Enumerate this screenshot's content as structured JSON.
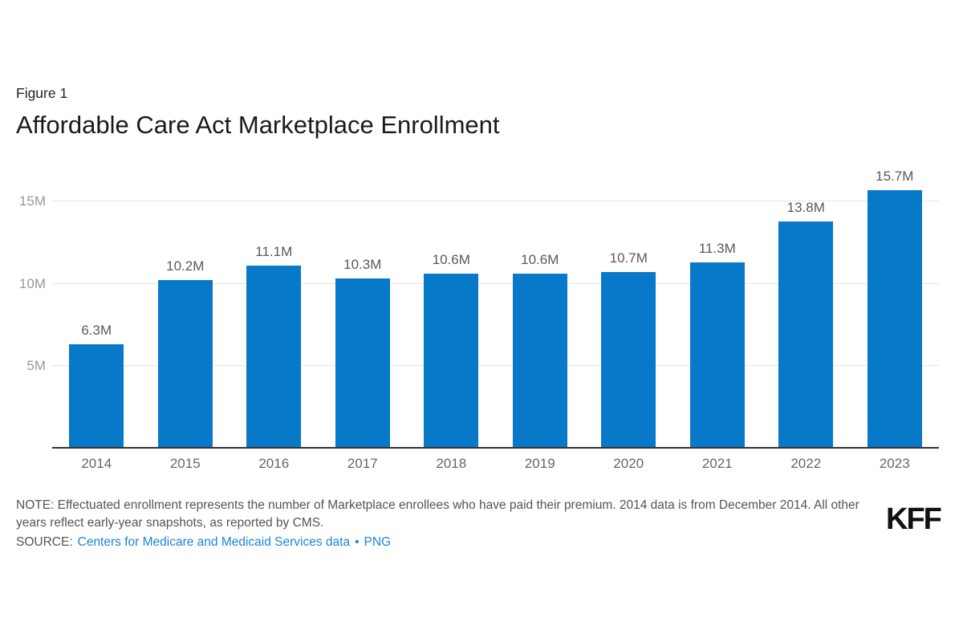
{
  "page": {
    "figure_label": "Figure 1",
    "title": "Affordable Care Act Marketplace Enrollment"
  },
  "chart_data": {
    "type": "bar",
    "title": "Affordable Care Act Marketplace Enrollment",
    "categories": [
      "2014",
      "2015",
      "2016",
      "2017",
      "2018",
      "2019",
      "2020",
      "2021",
      "2022",
      "2023"
    ],
    "values": [
      6.3,
      10.2,
      11.1,
      10.3,
      10.6,
      10.6,
      10.7,
      11.3,
      13.8,
      15.7
    ],
    "value_labels": [
      "6.3M",
      "10.2M",
      "11.1M",
      "10.3M",
      "10.6M",
      "10.6M",
      "10.7M",
      "11.3M",
      "13.8M",
      "15.7M"
    ],
    "unit": "millions of enrollees",
    "xlabel": "",
    "ylabel": "",
    "ylim": [
      0,
      18
    ],
    "yticks": [
      {
        "value": 5,
        "label": "5M"
      },
      {
        "value": 10,
        "label": "10M"
      },
      {
        "value": 15,
        "label": "15M"
      }
    ],
    "grid": true,
    "legend": "none",
    "bar_color": "#0878c8"
  },
  "footer": {
    "note": "NOTE: Effectuated enrollment represents the number of Marketplace enrollees who have paid their premium. 2014 data is from December 2014. All other years reflect early-year snapshots, as reported by CMS.",
    "source_prefix": "SOURCE:",
    "source_link": "Centers for Medicare and Medicaid Services data",
    "separator": "•",
    "png_link": "PNG",
    "logo": "KFF"
  },
  "colors": {
    "bar": "#0878c8",
    "link": "#1a85dc",
    "grid": "#cccccc",
    "axis": "#333333",
    "tick_label": "#999999",
    "value_label": "#595959",
    "year_label": "#666666",
    "note_text": "#555555",
    "title_text": "#1a1a1a",
    "logo": "#111111"
  }
}
